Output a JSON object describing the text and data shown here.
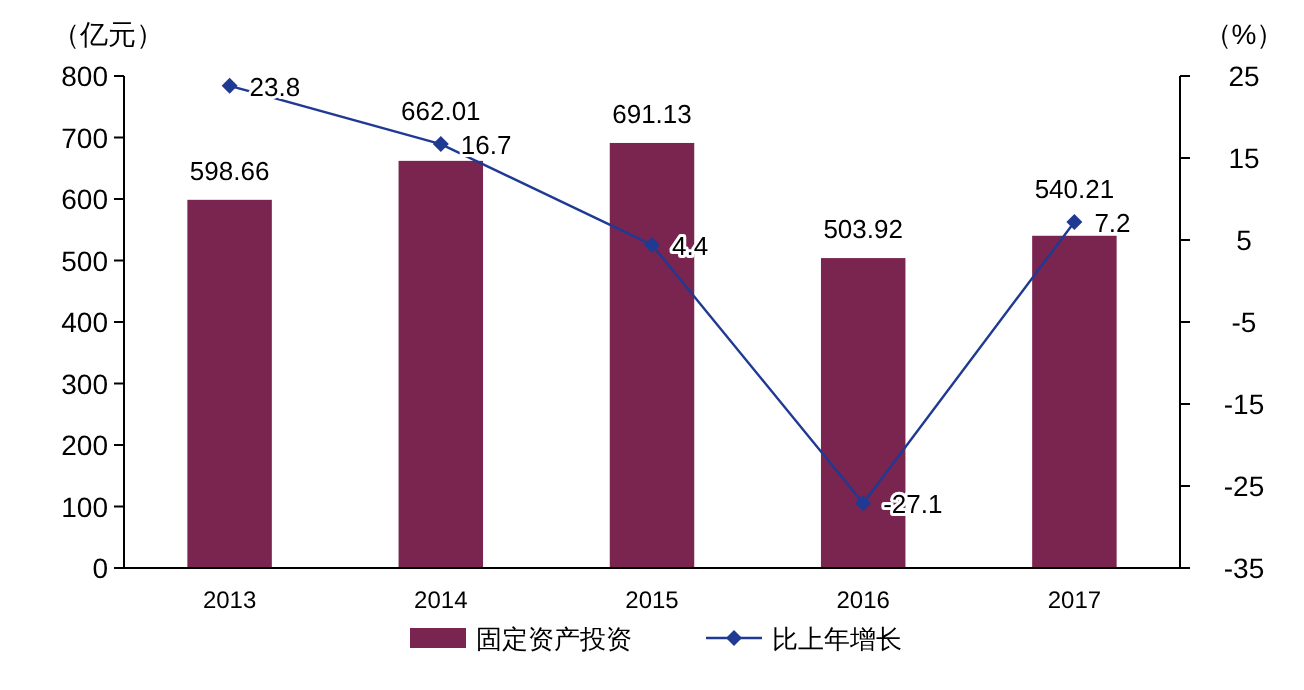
{
  "chart_data": {
    "type": "bar",
    "ylabel": "（亿元）",
    "y2label": "（%）",
    "categories": [
      "2013",
      "2014",
      "2015",
      "2016",
      "2017"
    ],
    "series": [
      {
        "name": "固定资产投资",
        "color": "#7a2450",
        "values": [
          598.66,
          662.01,
          691.13,
          503.92,
          540.21
        ]
      },
      {
        "name": "比上年增长",
        "type": "line",
        "axis": "y2",
        "color": "#1f3a93",
        "marker": "diamond",
        "values": [
          23.8,
          16.7,
          4.4,
          -27.1,
          7.2
        ]
      }
    ],
    "ylim": [
      0,
      800
    ],
    "yticks": [
      0,
      100,
      200,
      300,
      400,
      500,
      600,
      700,
      800
    ],
    "y2lim": [
      -35,
      25
    ],
    "y2ticks": [
      -35,
      -25,
      -15,
      -5,
      5,
      15,
      25
    ],
    "data_labels": true,
    "legend": "bottom",
    "grid": false
  }
}
